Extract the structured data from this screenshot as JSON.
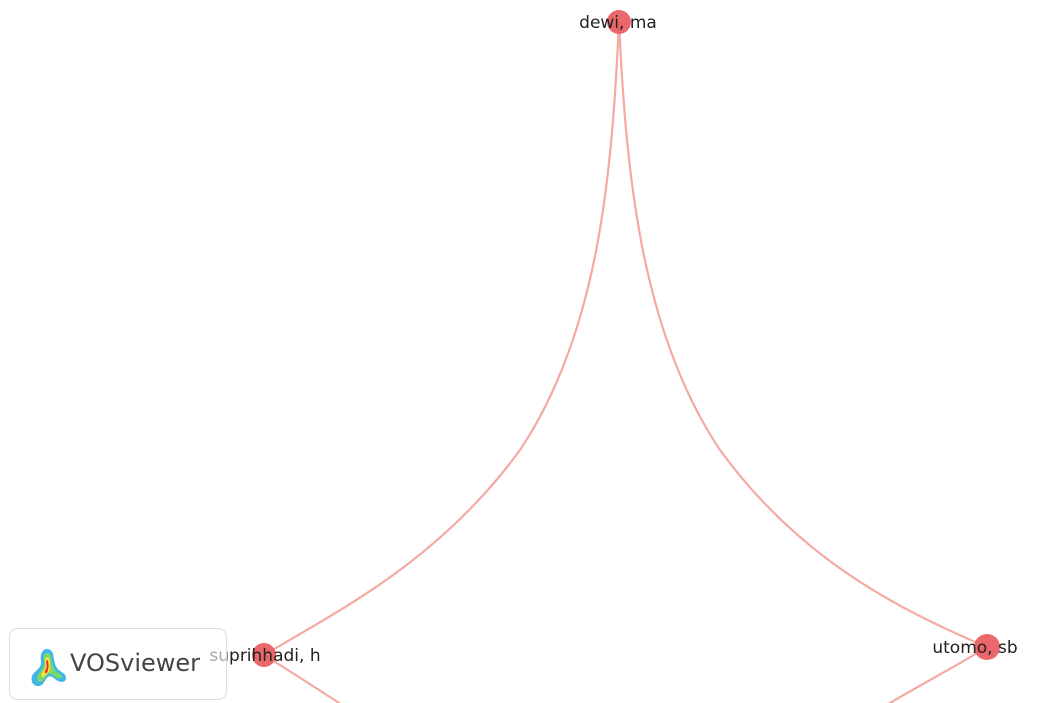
{
  "network": {
    "link_color": "#f4a9a3",
    "node_color": "#e8585c",
    "nodes": [
      {
        "id": "dewi",
        "label": "dewi, ma"
      },
      {
        "id": "suprihhadi",
        "label": "suprihhadi, h"
      },
      {
        "id": "utomo",
        "label": "utomo, sb"
      }
    ],
    "links": [
      {
        "source": "dewi",
        "target": "suprihhadi"
      },
      {
        "source": "dewi",
        "target": "utomo"
      },
      {
        "source": "suprihhadi",
        "target": "utomo"
      }
    ]
  },
  "branding": {
    "logo_text": "VOSviewer",
    "logo_icon": "vosviewer-density-icon"
  }
}
